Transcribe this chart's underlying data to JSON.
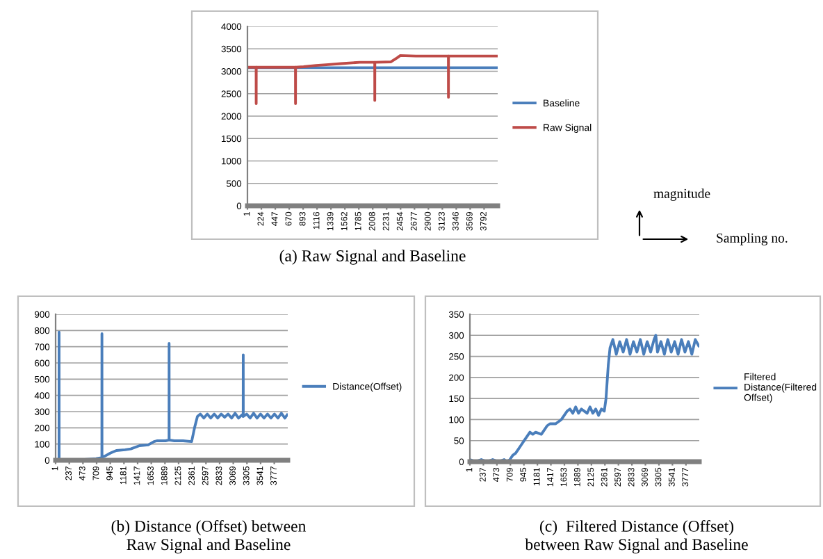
{
  "chart_data": [
    {
      "type": "line",
      "title": "(a) Raw Signal and Baseline",
      "annotations": [
        "magnitude",
        "Sampling no."
      ],
      "xlim": [
        1,
        4010
      ],
      "xticks": [
        1,
        224,
        447,
        670,
        893,
        1116,
        1339,
        1562,
        1785,
        2008,
        2231,
        2454,
        2677,
        2900,
        3123,
        3346,
        3569,
        3792
      ],
      "ylim": [
        0,
        4000
      ],
      "yticks": [
        0,
        500,
        1000,
        1500,
        2000,
        2500,
        3000,
        3500,
        4000
      ],
      "grid": "y",
      "legend": "right",
      "series": [
        {
          "name": "Baseline",
          "color": "#4a7ebb",
          "x": [
            1,
            4000
          ],
          "values": [
            3080,
            3080
          ]
        },
        {
          "name": "Raw Signal",
          "color": "#be4b48",
          "x": [
            1,
            140,
            141,
            142,
            300,
            600,
            770,
            771,
            772,
            900,
            1100,
            1300,
            1500,
            1800,
            2040,
            2041,
            2042,
            2300,
            2400,
            2450,
            2700,
            3000,
            3220,
            3221,
            3222,
            3500,
            4000
          ],
          "values": [
            3090,
            3090,
            2280,
            3090,
            3090,
            3090,
            3090,
            2280,
            3090,
            3100,
            3130,
            3150,
            3170,
            3200,
            3200,
            2350,
            3200,
            3210,
            3300,
            3350,
            3340,
            3340,
            3340,
            2420,
            3340,
            3340,
            3340
          ]
        }
      ]
    },
    {
      "type": "line",
      "title": "(b) Distance (Offset) between\nRaw Signal and Baseline",
      "xlim": [
        1,
        4010
      ],
      "xticks": [
        1,
        237,
        473,
        709,
        945,
        1181,
        1417,
        1653,
        1889,
        2125,
        2361,
        2597,
        2833,
        3069,
        3305,
        3541,
        3777
      ],
      "ylim": [
        0,
        900
      ],
      "yticks": [
        0,
        100,
        200,
        300,
        400,
        500,
        600,
        700,
        800,
        900
      ],
      "grid": "y",
      "legend": "right",
      "series": [
        {
          "name": "Distance(Offset)",
          "color": "#4a7ebb",
          "x": [
            1,
            60,
            61,
            62,
            120,
            300,
            500,
            700,
            790,
            800,
            801,
            802,
            850,
            950,
            1050,
            1200,
            1300,
            1450,
            1600,
            1700,
            1750,
            1900,
            1960,
            1961,
            1962,
            2050,
            2200,
            2350,
            2400,
            2450,
            2500,
            2560,
            2620,
            2680,
            2740,
            2800,
            2860,
            2920,
            2980,
            3040,
            3100,
            3160,
            3220,
            3240,
            3241,
            3242,
            3300,
            3360,
            3420,
            3480,
            3540,
            3600,
            3660,
            3720,
            3780,
            3840,
            3900,
            3960,
            4000
          ],
          "values": [
            0,
            0,
            790,
            0,
            0,
            5,
            5,
            10,
            15,
            20,
            780,
            20,
            25,
            45,
            60,
            65,
            70,
            90,
            95,
            115,
            120,
            120,
            125,
            720,
            125,
            120,
            120,
            115,
            200,
            270,
            285,
            260,
            285,
            260,
            285,
            260,
            285,
            265,
            285,
            260,
            290,
            260,
            280,
            270,
            650,
            270,
            285,
            260,
            290,
            260,
            285,
            260,
            285,
            260,
            285,
            260,
            290,
            260,
            280
          ]
        }
      ]
    },
    {
      "type": "line",
      "title": "(c)  Filtered Distance (Offset)\nbetween Raw Signal and Baseline",
      "xlim": [
        1,
        4010
      ],
      "xticks": [
        1,
        237,
        473,
        709,
        945,
        1181,
        1417,
        1653,
        1889,
        2125,
        2361,
        2597,
        2833,
        3069,
        3305,
        3541,
        3777
      ],
      "ylim": [
        0,
        350
      ],
      "yticks": [
        0,
        50,
        100,
        150,
        200,
        250,
        300,
        350
      ],
      "grid": "y",
      "legend": "right",
      "series": [
        {
          "name": "Filtered Distance(Filtered Offset)",
          "color": "#4a7ebb",
          "x": [
            1,
            100,
            200,
            300,
            400,
            500,
            600,
            650,
            700,
            750,
            800,
            850,
            900,
            950,
            1000,
            1050,
            1100,
            1150,
            1250,
            1300,
            1350,
            1400,
            1500,
            1550,
            1600,
            1650,
            1700,
            1750,
            1800,
            1850,
            1900,
            1950,
            2000,
            2050,
            2100,
            2150,
            2200,
            2250,
            2300,
            2350,
            2380,
            2420,
            2450,
            2500,
            2560,
            2620,
            2680,
            2740,
            2800,
            2860,
            2920,
            2980,
            3040,
            3100,
            3160,
            3220,
            3250,
            3280,
            3340,
            3400,
            3460,
            3520,
            3580,
            3640,
            3700,
            3760,
            3820,
            3880,
            3940,
            4000
          ],
          "values": [
            5,
            0,
            5,
            0,
            5,
            0,
            5,
            0,
            5,
            15,
            20,
            30,
            40,
            50,
            60,
            70,
            65,
            70,
            65,
            75,
            85,
            90,
            90,
            95,
            100,
            110,
            120,
            125,
            115,
            130,
            115,
            125,
            120,
            115,
            130,
            115,
            125,
            110,
            125,
            120,
            150,
            230,
            270,
            290,
            255,
            285,
            260,
            290,
            255,
            285,
            260,
            290,
            255,
            285,
            260,
            290,
            300,
            260,
            285,
            255,
            290,
            260,
            285,
            255,
            290,
            260,
            285,
            255,
            290,
            275
          ]
        }
      ]
    }
  ]
}
